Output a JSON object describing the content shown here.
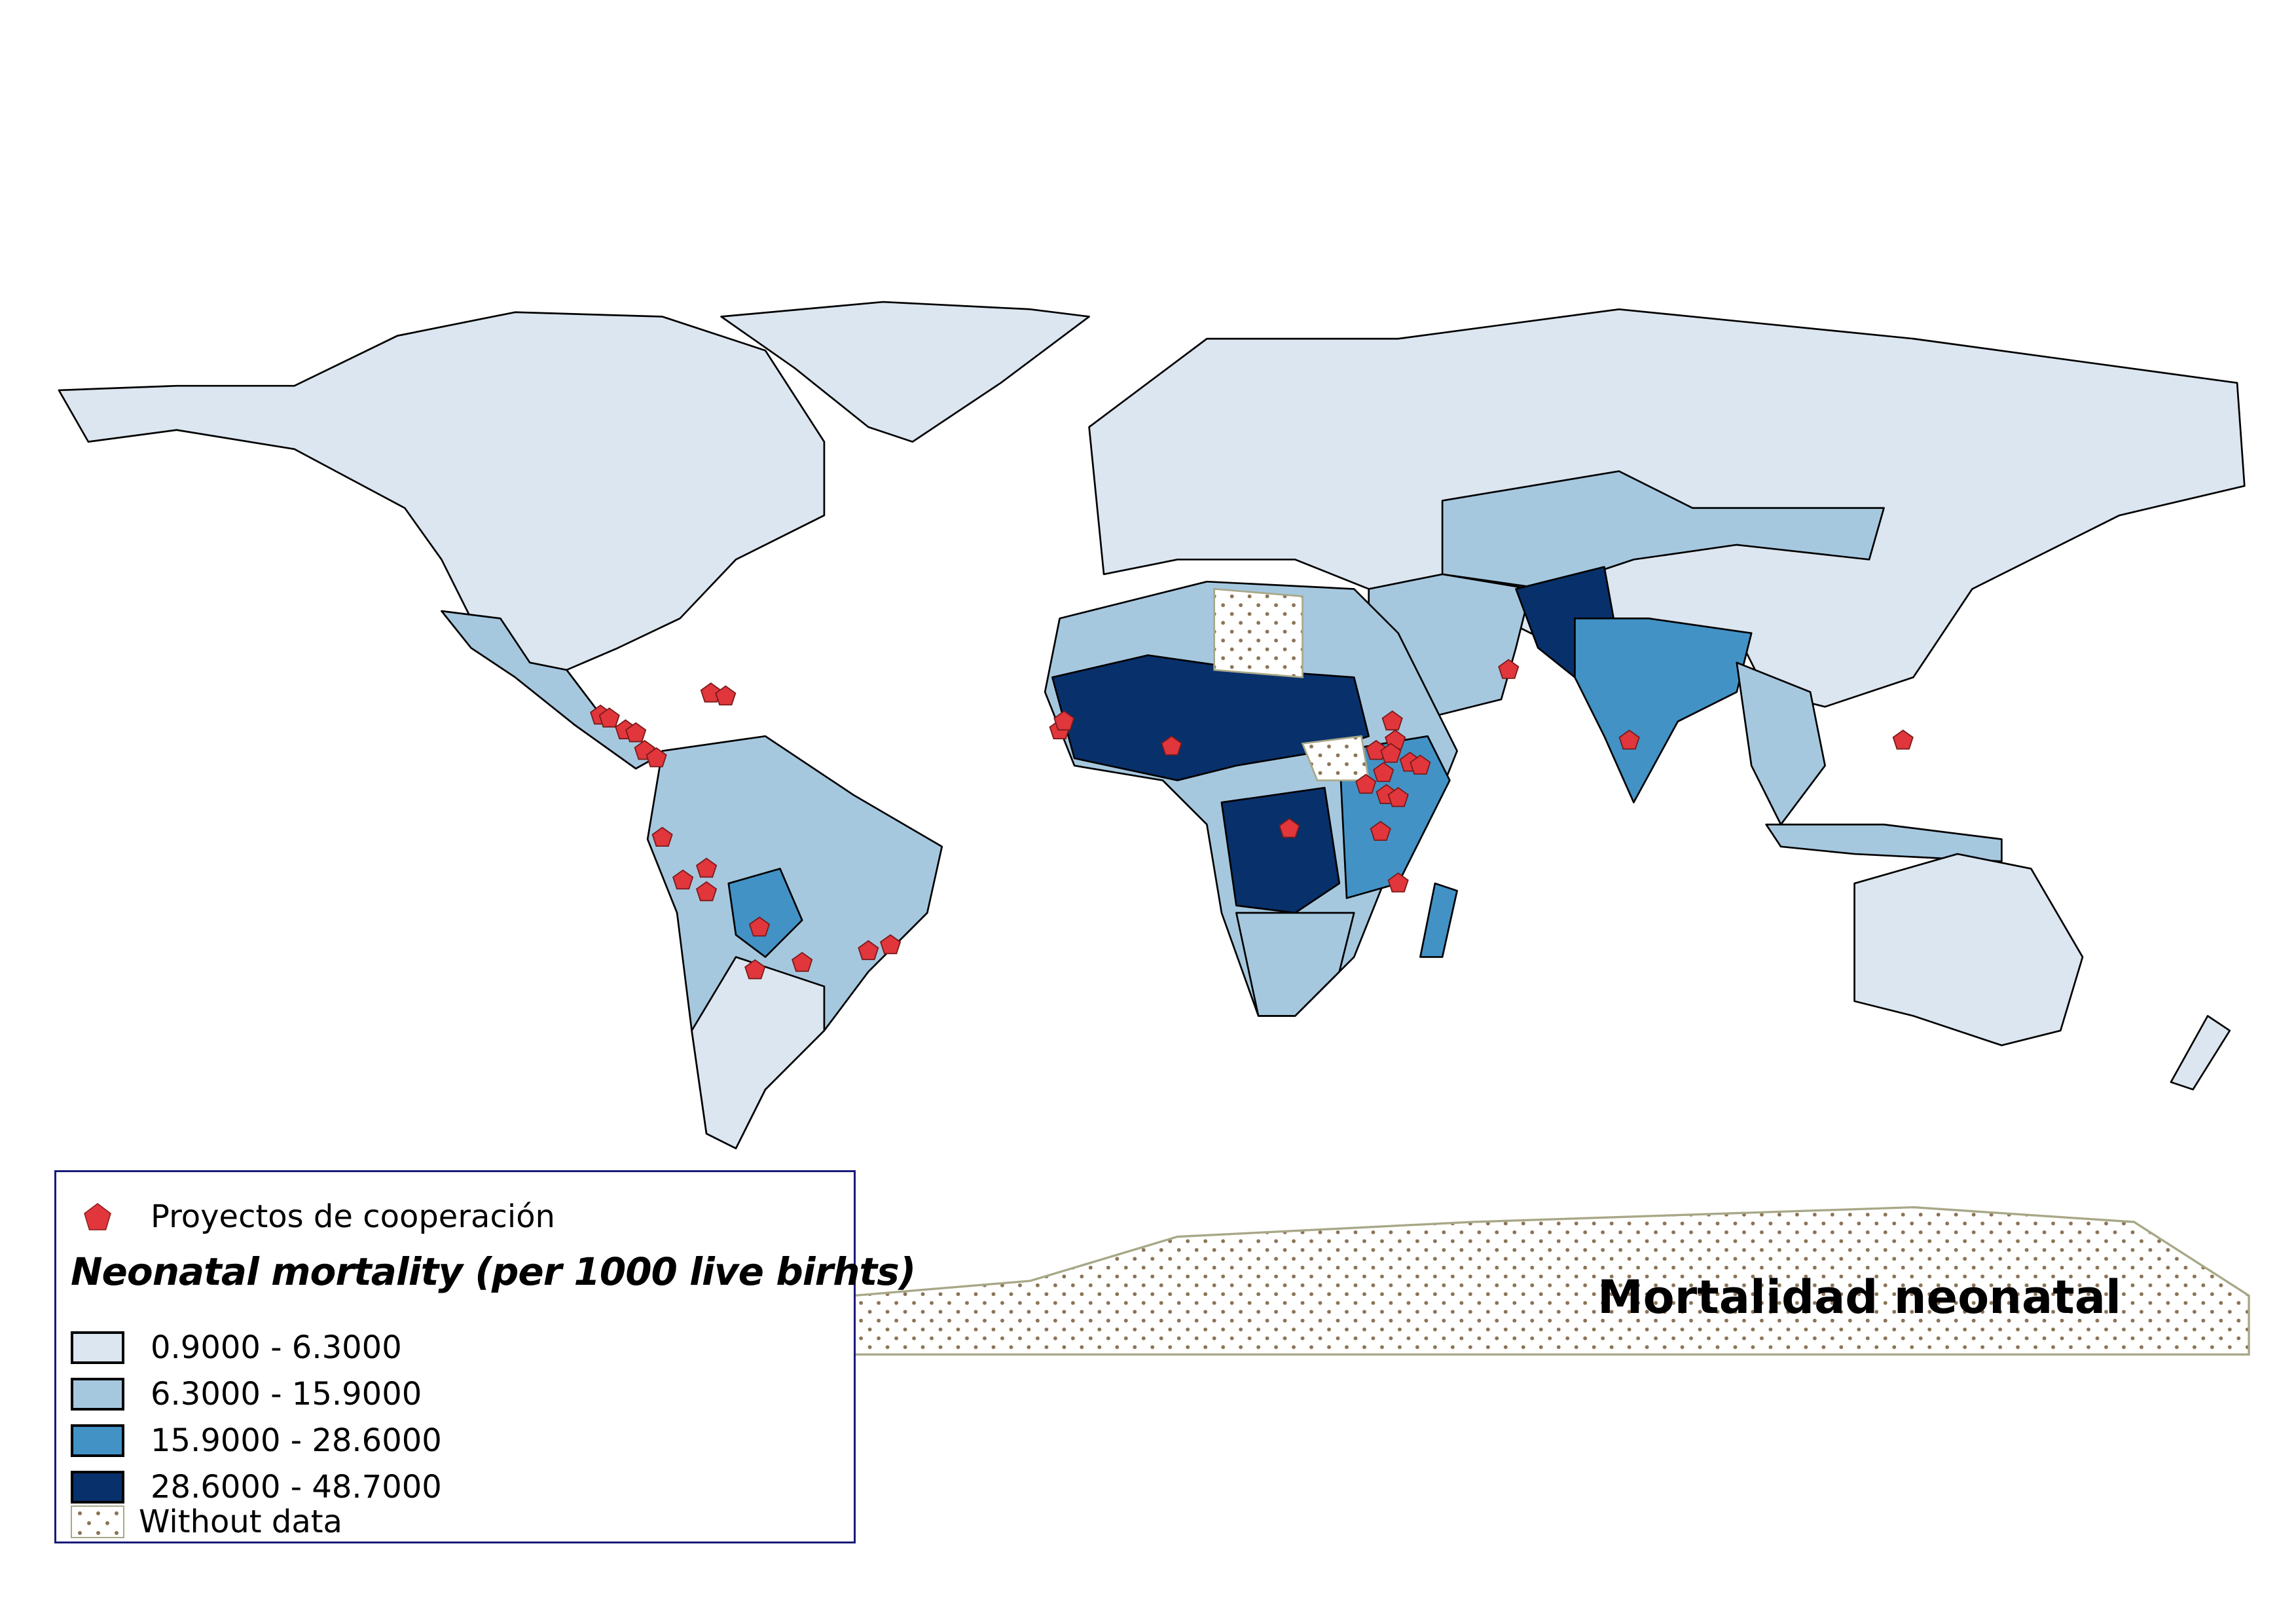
{
  "map_title": "Mortalidad neonatal",
  "legend": {
    "point_layer": {
      "label": "Proyectos de cooperación",
      "color": "#e0363c",
      "icon": "pentagon-marker-icon"
    },
    "title": "Neonatal mortality (per 1000 live birhts)",
    "classes": [
      {
        "label": "0.9000 - 6.3000",
        "color": "#dce6f0"
      },
      {
        "label": "6.3000 - 15.9000",
        "color": "#a6c8df"
      },
      {
        "label": "15.9000 - 28.6000",
        "color": "#4292c6"
      },
      {
        "label": "28.6000 - 48.7000",
        "color": "#08306b"
      }
    ],
    "no_data": {
      "label": "Without data",
      "pattern": "dots",
      "dot_color": "#8b7355"
    }
  }
}
